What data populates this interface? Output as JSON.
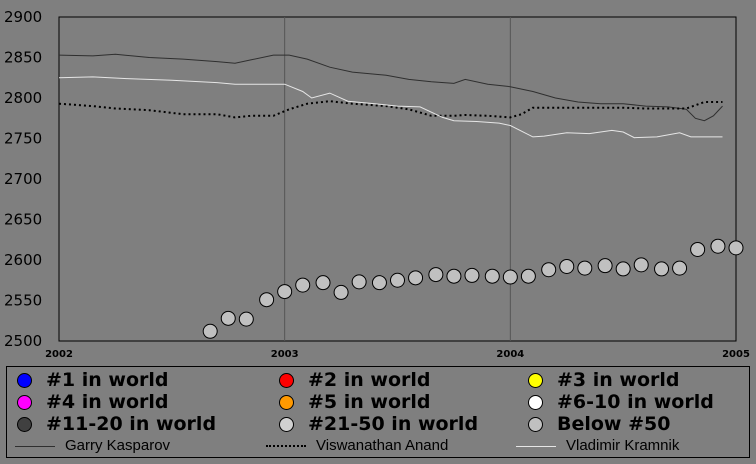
{
  "chart_data": {
    "type": "line",
    "x_axis": {
      "ticks": [
        "2002",
        "2003",
        "2004",
        "2005"
      ],
      "range": [
        2002.0,
        2005.0
      ]
    },
    "y_axis": {
      "ticks": [
        "2500",
        "2550",
        "2600",
        "2650",
        "2700",
        "2750",
        "2800",
        "2850",
        "2900"
      ],
      "range": [
        2500,
        2900
      ]
    },
    "grid": true,
    "series": [
      {
        "name": "Garry Kasparov",
        "style": "solid",
        "color": "#2f2f2f",
        "points": [
          [
            2002.0,
            2853
          ],
          [
            2002.15,
            2852
          ],
          [
            2002.25,
            2854
          ],
          [
            2002.4,
            2850
          ],
          [
            2002.55,
            2848
          ],
          [
            2002.7,
            2845
          ],
          [
            2002.78,
            2843
          ],
          [
            2002.85,
            2847
          ],
          [
            2002.95,
            2853
          ],
          [
            2003.02,
            2853
          ],
          [
            2003.1,
            2848
          ],
          [
            2003.2,
            2838
          ],
          [
            2003.3,
            2832
          ],
          [
            2003.45,
            2828
          ],
          [
            2003.55,
            2823
          ],
          [
            2003.65,
            2820
          ],
          [
            2003.75,
            2818
          ],
          [
            2003.8,
            2823
          ],
          [
            2003.9,
            2817
          ],
          [
            2004.0,
            2814
          ],
          [
            2004.1,
            2808
          ],
          [
            2004.2,
            2800
          ],
          [
            2004.3,
            2795
          ],
          [
            2004.4,
            2793
          ],
          [
            2004.5,
            2793
          ],
          [
            2004.6,
            2790
          ],
          [
            2004.7,
            2789
          ],
          [
            2004.78,
            2786
          ],
          [
            2004.82,
            2775
          ],
          [
            2004.86,
            2772
          ],
          [
            2004.9,
            2778
          ],
          [
            2004.94,
            2790
          ]
        ]
      },
      {
        "name": "Viswanathan Anand",
        "style": "dotted",
        "color": "#000000",
        "points": [
          [
            2002.0,
            2793
          ],
          [
            2002.15,
            2790
          ],
          [
            2002.25,
            2787
          ],
          [
            2002.4,
            2785
          ],
          [
            2002.55,
            2780
          ],
          [
            2002.7,
            2780
          ],
          [
            2002.78,
            2776
          ],
          [
            2002.85,
            2778
          ],
          [
            2002.95,
            2778
          ],
          [
            2003.02,
            2786
          ],
          [
            2003.1,
            2793
          ],
          [
            2003.2,
            2796
          ],
          [
            2003.3,
            2793
          ],
          [
            2003.45,
            2790
          ],
          [
            2003.55,
            2786
          ],
          [
            2003.65,
            2778
          ],
          [
            2003.75,
            2778
          ],
          [
            2003.8,
            2779
          ],
          [
            2003.9,
            2778
          ],
          [
            2004.0,
            2776
          ],
          [
            2004.05,
            2780
          ],
          [
            2004.1,
            2788
          ],
          [
            2004.2,
            2788
          ],
          [
            2004.3,
            2788
          ],
          [
            2004.4,
            2788
          ],
          [
            2004.5,
            2788
          ],
          [
            2004.6,
            2787
          ],
          [
            2004.7,
            2787
          ],
          [
            2004.78,
            2787
          ],
          [
            2004.86,
            2795
          ],
          [
            2004.94,
            2795
          ]
        ]
      },
      {
        "name": "Vladimir Kramnik",
        "style": "solid",
        "color": "#e6e6e6",
        "points": [
          [
            2002.0,
            2825
          ],
          [
            2002.15,
            2826
          ],
          [
            2002.3,
            2824
          ],
          [
            2002.5,
            2822
          ],
          [
            2002.7,
            2819
          ],
          [
            2002.78,
            2817
          ],
          [
            2002.9,
            2817
          ],
          [
            2003.0,
            2817
          ],
          [
            2003.08,
            2808
          ],
          [
            2003.12,
            2800
          ],
          [
            2003.2,
            2806
          ],
          [
            2003.28,
            2796
          ],
          [
            2003.4,
            2793
          ],
          [
            2003.5,
            2790
          ],
          [
            2003.6,
            2789
          ],
          [
            2003.7,
            2776
          ],
          [
            2003.75,
            2772
          ],
          [
            2003.85,
            2771
          ],
          [
            2003.95,
            2769
          ],
          [
            2004.0,
            2766
          ],
          [
            2004.1,
            2752
          ],
          [
            2004.15,
            2753
          ],
          [
            2004.25,
            2757
          ],
          [
            2004.35,
            2756
          ],
          [
            2004.45,
            2760
          ],
          [
            2004.5,
            2758
          ],
          [
            2004.55,
            2751
          ],
          [
            2004.65,
            2752
          ],
          [
            2004.75,
            2757
          ],
          [
            2004.8,
            2752
          ],
          [
            2004.94,
            2752
          ]
        ]
      },
      {
        "name": "Below #50",
        "style": "markers",
        "color": "#c0c0c0",
        "points": [
          [
            2002.67,
            2512
          ],
          [
            2002.75,
            2528
          ],
          [
            2002.83,
            2527
          ],
          [
            2002.92,
            2551
          ],
          [
            2003.0,
            2561
          ],
          [
            2003.08,
            2569
          ],
          [
            2003.17,
            2572
          ],
          [
            2003.25,
            2560
          ],
          [
            2003.33,
            2573
          ],
          [
            2003.42,
            2572
          ],
          [
            2003.5,
            2575
          ],
          [
            2003.58,
            2578
          ],
          [
            2003.67,
            2582
          ],
          [
            2003.75,
            2580
          ],
          [
            2003.83,
            2581
          ],
          [
            2003.92,
            2580
          ],
          [
            2004.0,
            2579
          ],
          [
            2004.08,
            2580
          ],
          [
            2004.17,
            2588
          ],
          [
            2004.25,
            2592
          ],
          [
            2004.33,
            2590
          ],
          [
            2004.42,
            2593
          ],
          [
            2004.5,
            2589
          ],
          [
            2004.58,
            2594
          ],
          [
            2004.67,
            2589
          ],
          [
            2004.75,
            2590
          ],
          [
            2004.83,
            2613
          ],
          [
            2004.92,
            2617
          ],
          [
            2005.0,
            2615
          ]
        ]
      }
    ],
    "legend": {
      "placement": "bottom",
      "markers": [
        {
          "label": "#1 in world",
          "color": "#0000ff"
        },
        {
          "label": "#2 in world",
          "color": "#ff0000"
        },
        {
          "label": "#3 in world",
          "color": "#ffff00"
        },
        {
          "label": "#4 in world",
          "color": "#ff00ff"
        },
        {
          "label": "#5 in world",
          "color": "#ff9900"
        },
        {
          "label": "#6-10 in world",
          "color": "#ffffff"
        },
        {
          "label": "#11-20 in world",
          "color": "#404040"
        },
        {
          "label": "#21-50 in world",
          "color": "#d0d0d0"
        },
        {
          "label": "Below #50",
          "color": "#c0c0c0"
        }
      ],
      "lines": [
        {
          "label": "Garry Kasparov",
          "style": "solid",
          "color": "#2f2f2f"
        },
        {
          "label": "Viswanathan Anand",
          "style": "dotted",
          "color": "#000000"
        },
        {
          "label": "Vladimir Kramnik",
          "style": "solid",
          "color": "#e6e6e6"
        }
      ]
    }
  }
}
